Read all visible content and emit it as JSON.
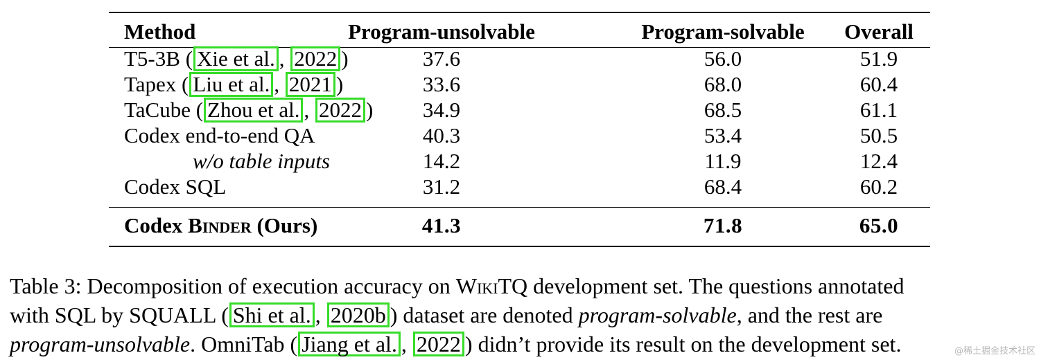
{
  "table": {
    "headers": [
      "Method",
      "Program-unsolvable",
      "Program-solvable",
      "Overall"
    ],
    "rows": [
      {
        "method": "T5-3B",
        "cite_author": "Xie et al.",
        "cite_year": "2022",
        "unsolvable": "37.6",
        "solvable": "56.0",
        "overall": "51.9"
      },
      {
        "method": "Tapex",
        "cite_author": "Liu et al.",
        "cite_year": "2021",
        "unsolvable": "33.6",
        "solvable": "68.0",
        "overall": "60.4"
      },
      {
        "method": "TaCube",
        "cite_author": "Zhou et al.",
        "cite_year": "2022",
        "unsolvable": "34.9",
        "solvable": "68.5",
        "overall": "61.1"
      },
      {
        "method": "Codex end-to-end QA",
        "unsolvable": "40.3",
        "solvable": "53.4",
        "overall": "50.5"
      },
      {
        "method": "w/o table inputs",
        "unsolvable": "14.2",
        "solvable": "11.9",
        "overall": "12.4"
      },
      {
        "method": "Codex SQL",
        "unsolvable": "31.2",
        "solvable": "68.4",
        "overall": "60.2"
      }
    ],
    "ours": {
      "method_prefix": "Codex",
      "method_name": "Binder",
      "method_suffix": "(Ours)",
      "unsolvable": "41.3",
      "solvable": "71.8",
      "overall": "65.0"
    }
  },
  "caption": {
    "l1_a": "Table 3: Decomposition of execution accuracy on ",
    "l1_wikitq": "WikiTQ",
    "l1_b": " development set. The questions annotated",
    "l2_a": "with SQL by SQUALL (",
    "l2_cite_author": "Shi et al.",
    "l2_cite_year": "2020b",
    "l2_b": ") dataset are denoted ",
    "l2_ital": "program-solvable",
    "l2_c": ", and the rest are",
    "l3_ital": "program-unsolvable",
    "l3_a": ". OmniTab (",
    "l3_cite_author": "Jiang et al.",
    "l3_cite_year": "2022",
    "l3_b": ") didn’t provide its result on the development set."
  },
  "watermark": "@稀土掘金技术社区",
  "colors": {
    "citation_box": "#36dc28"
  }
}
